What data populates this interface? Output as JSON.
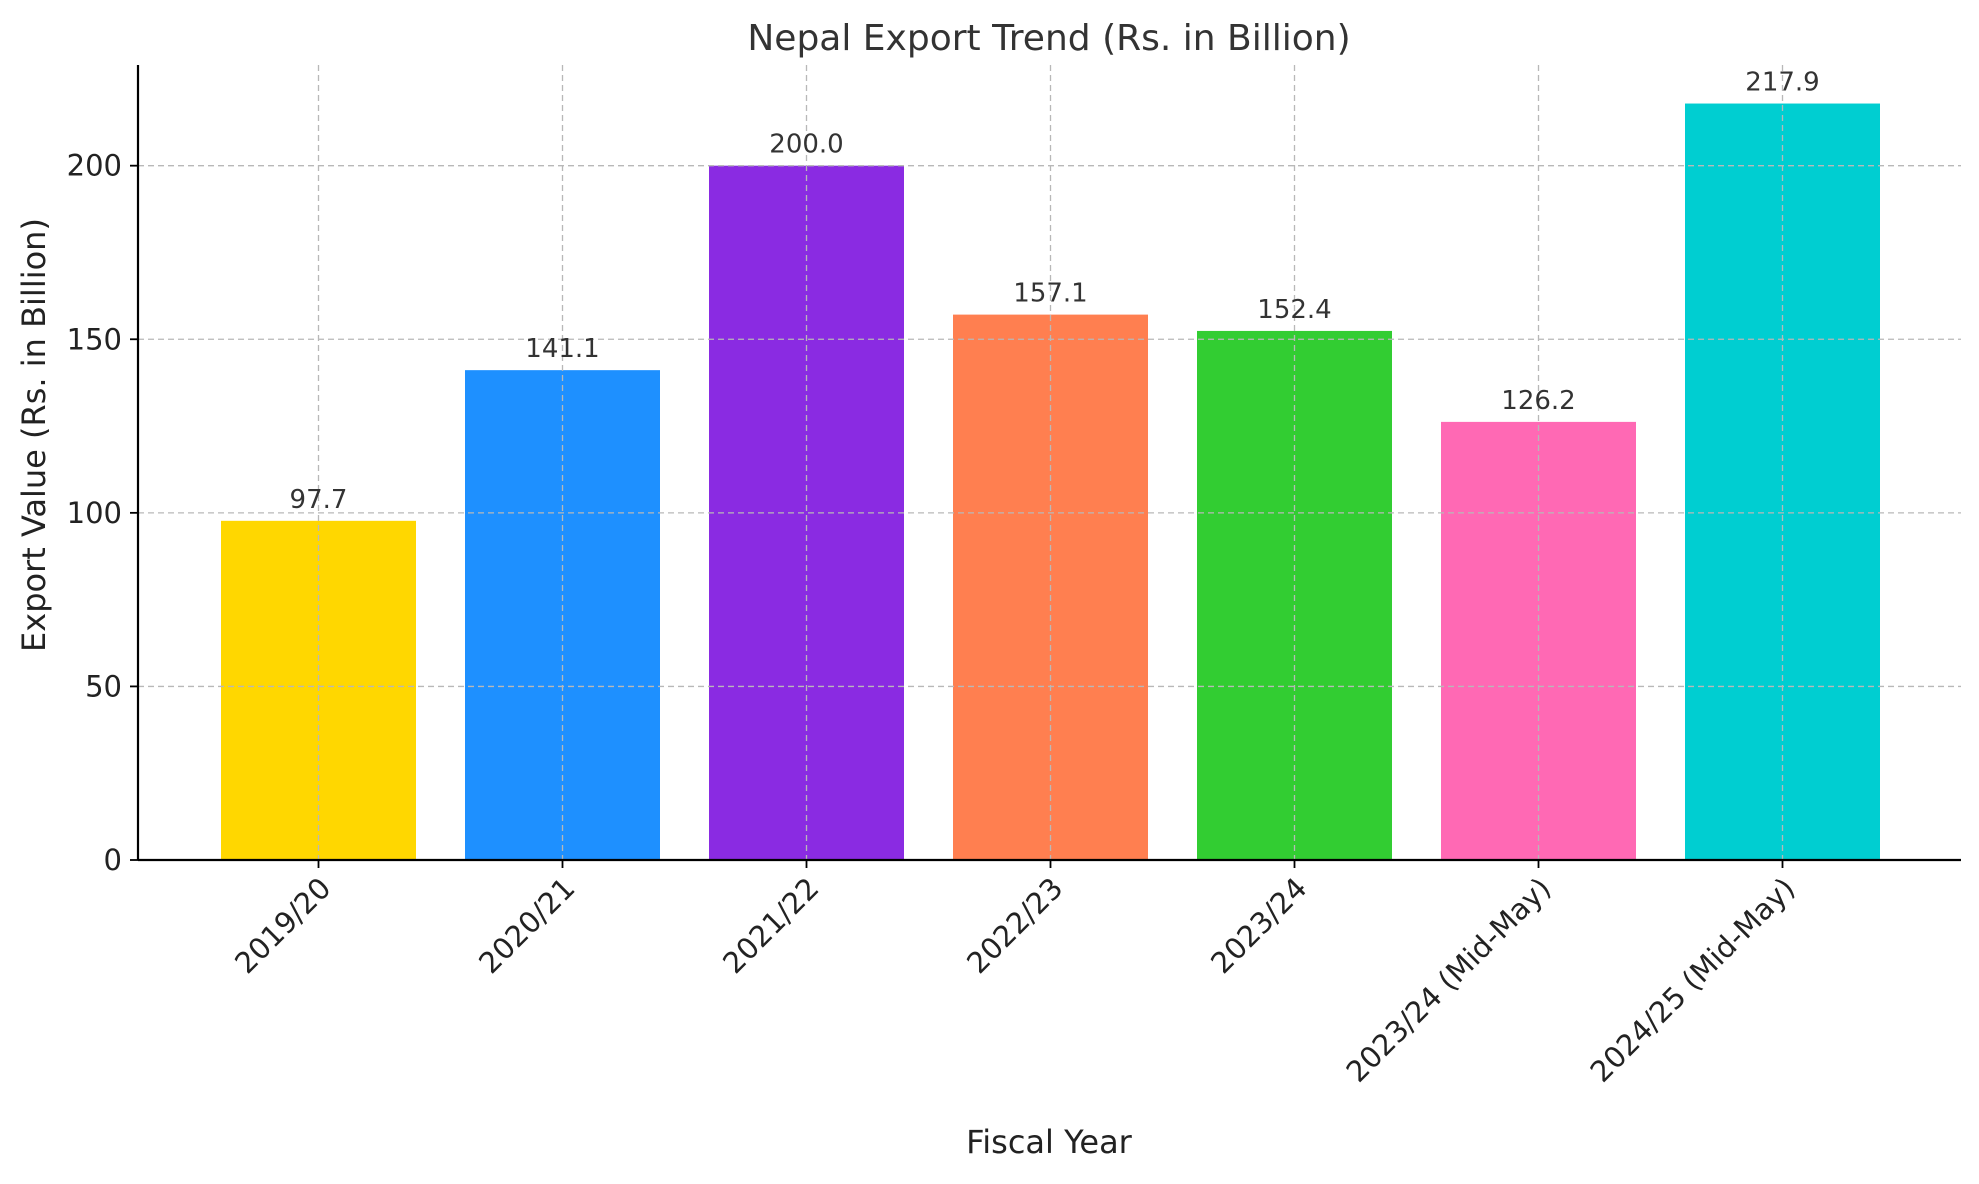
{
  "chart_data": {
    "type": "bar",
    "title": "Nepal Export Trend (Rs. in Billion)",
    "xlabel": "Fiscal Year",
    "ylabel": "Export Value (Rs. in Billion)",
    "categories": [
      "2019/20",
      "2020/21",
      "2021/22",
      "2022/23",
      "2023/24",
      "2023/24 (Mid-May)",
      "2024/25 (Mid-May)"
    ],
    "values": [
      97.7,
      141.1,
      200.0,
      157.1,
      152.4,
      126.2,
      217.9
    ],
    "value_labels": [
      "97.7",
      "141.1",
      "200.0",
      "157.1",
      "152.4",
      "126.2",
      "217.9"
    ],
    "colors": [
      "#FFD700",
      "#1E90FF",
      "#8A2BE2",
      "#FF7F50",
      "#32CD32",
      "#FF69B4",
      "#00CED1"
    ],
    "ylim": [
      0,
      229
    ],
    "yticks": [
      0,
      50,
      100,
      150,
      200
    ],
    "grid": true,
    "legend": "none"
  }
}
